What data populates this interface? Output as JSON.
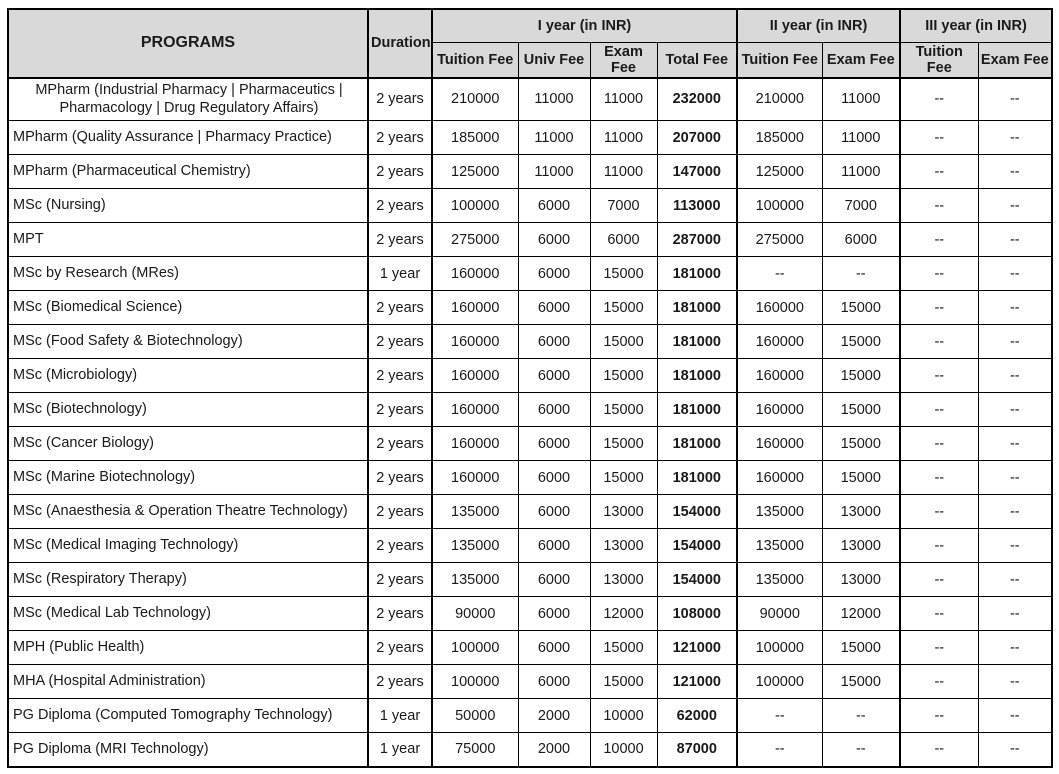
{
  "colors": {
    "header_bg": "#d9d9d9",
    "border": "#000000",
    "text": "#1a1a1a"
  },
  "table": {
    "header": {
      "programs": "PROGRAMS",
      "duration": "Duration",
      "groups": [
        {
          "label": "I year (in INR)",
          "cols": [
            "Tuition Fee",
            "Univ Fee",
            "Exam Fee",
            "Total Fee"
          ]
        },
        {
          "label": "II year (in INR)",
          "cols": [
            "Tuition Fee",
            "Exam Fee"
          ]
        },
        {
          "label": "III year (in INR)",
          "cols": [
            "Tuition Fee",
            "Exam Fee"
          ]
        }
      ]
    },
    "rows": [
      {
        "program": "MPharm (Industrial Pharmacy | Pharmaceutics | Pharmacology | Drug Regulatory Affairs)",
        "duration": "2 years",
        "cells": [
          "210000",
          "11000",
          "11000",
          "232000",
          "210000",
          "11000",
          "--",
          "--"
        ]
      },
      {
        "program": "MPharm (Quality Assurance | Pharmacy Practice)",
        "duration": "2 years",
        "cells": [
          "185000",
          "11000",
          "11000",
          "207000",
          "185000",
          "11000",
          "--",
          "--"
        ]
      },
      {
        "program": "MPharm (Pharmaceutical Chemistry)",
        "duration": "2 years",
        "cells": [
          "125000",
          "11000",
          "11000",
          "147000",
          "125000",
          "11000",
          "--",
          "--"
        ]
      },
      {
        "program": "MSc (Nursing)",
        "duration": "2 years",
        "cells": [
          "100000",
          "6000",
          "7000",
          "113000",
          "100000",
          "7000",
          "--",
          "--"
        ]
      },
      {
        "program": "MPT",
        "duration": "2 years",
        "cells": [
          "275000",
          "6000",
          "6000",
          "287000",
          "275000",
          "6000",
          "--",
          "--"
        ]
      },
      {
        "program": "MSc by Research (MRes)",
        "duration": "1 year",
        "cells": [
          "160000",
          "6000",
          "15000",
          "181000",
          "--",
          "--",
          "--",
          "--"
        ]
      },
      {
        "program": "MSc (Biomedical Science)",
        "duration": "2 years",
        "cells": [
          "160000",
          "6000",
          "15000",
          "181000",
          "160000",
          "15000",
          "--",
          "--"
        ]
      },
      {
        "program": "MSc (Food Safety & Biotechnology)",
        "duration": "2 years",
        "cells": [
          "160000",
          "6000",
          "15000",
          "181000",
          "160000",
          "15000",
          "--",
          "--"
        ]
      },
      {
        "program": "MSc (Microbiology)",
        "duration": "2 years",
        "cells": [
          "160000",
          "6000",
          "15000",
          "181000",
          "160000",
          "15000",
          "--",
          "--"
        ]
      },
      {
        "program": "MSc (Biotechnology)",
        "duration": "2 years",
        "cells": [
          "160000",
          "6000",
          "15000",
          "181000",
          "160000",
          "15000",
          "--",
          "--"
        ]
      },
      {
        "program": "MSc (Cancer Biology)",
        "duration": "2 years",
        "cells": [
          "160000",
          "6000",
          "15000",
          "181000",
          "160000",
          "15000",
          "--",
          "--"
        ]
      },
      {
        "program": "MSc (Marine Biotechnology)",
        "duration": "2 years",
        "cells": [
          "160000",
          "6000",
          "15000",
          "181000",
          "160000",
          "15000",
          "--",
          "--"
        ]
      },
      {
        "program": "MSc (Anaesthesia & Operation Theatre Technology)",
        "duration": "2 years",
        "cells": [
          "135000",
          "6000",
          "13000",
          "154000",
          "135000",
          "13000",
          "--",
          "--"
        ]
      },
      {
        "program": "MSc (Medical Imaging Technology)",
        "duration": "2 years",
        "cells": [
          "135000",
          "6000",
          "13000",
          "154000",
          "135000",
          "13000",
          "--",
          "--"
        ]
      },
      {
        "program": "MSc (Respiratory Therapy)",
        "duration": "2 years",
        "cells": [
          "135000",
          "6000",
          "13000",
          "154000",
          "135000",
          "13000",
          "--",
          "--"
        ]
      },
      {
        "program": "MSc (Medical Lab Technology)",
        "duration": "2 years",
        "cells": [
          "90000",
          "6000",
          "12000",
          "108000",
          "90000",
          "12000",
          "--",
          "--"
        ]
      },
      {
        "program": "MPH (Public Health)",
        "duration": "2 years",
        "cells": [
          "100000",
          "6000",
          "15000",
          "121000",
          "100000",
          "15000",
          "--",
          "--"
        ]
      },
      {
        "program": "MHA (Hospital Administration)",
        "duration": "2 years",
        "cells": [
          "100000",
          "6000",
          "15000",
          "121000",
          "100000",
          "15000",
          "--",
          "--"
        ]
      },
      {
        "program": "PG Diploma (Computed Tomography Technology)",
        "duration": "1 year",
        "cells": [
          "50000",
          "2000",
          "10000",
          "62000",
          "--",
          "--",
          "--",
          "--"
        ]
      },
      {
        "program": "PG Diploma (MRI Technology)",
        "duration": "1 year",
        "cells": [
          "75000",
          "2000",
          "10000",
          "87000",
          "--",
          "--",
          "--",
          "--"
        ]
      }
    ]
  }
}
